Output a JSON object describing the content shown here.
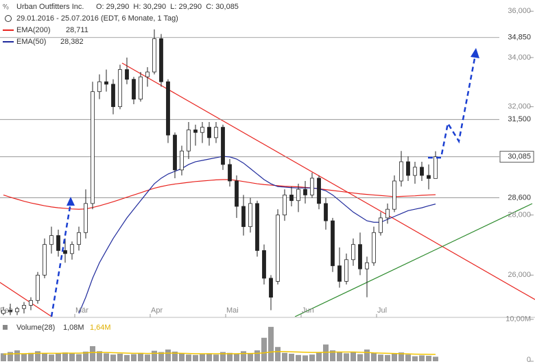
{
  "chart_data": {
    "type": "candlestick",
    "title": "Urban Outfitters Inc.",
    "quote": "O: 29,290  H: 30,290  L: 29,290  C: 30,085",
    "subtitle": "29.01.2016 - 25.07.2016 (EDT, 6 Monate, 1 Tag)",
    "categories": [
      "Feb",
      null,
      null,
      null,
      null,
      null,
      null,
      null,
      null,
      null,
      null,
      "Mär",
      null,
      null,
      null,
      null,
      null,
      null,
      null,
      null,
      null,
      null,
      "Apr",
      null,
      null,
      null,
      null,
      null,
      null,
      null,
      null,
      null,
      null,
      "Mai",
      null,
      null,
      null,
      null,
      null,
      null,
      null,
      null,
      null,
      null,
      "Jun",
      null,
      null,
      null,
      null,
      null,
      null,
      null,
      null,
      null,
      null,
      "Jul",
      null,
      null,
      null,
      null,
      null,
      null,
      null,
      null
    ],
    "open": [
      24800,
      24900,
      24850,
      24950,
      25050,
      25200,
      26000,
      27000,
      27300,
      26800,
      26700,
      27000,
      27400,
      28400,
      32600,
      33000,
      32900,
      32000,
      33500,
      33100,
      32300,
      33200,
      33400,
      34800,
      33000,
      30900,
      29600,
      30300,
      31100,
      31000,
      31200,
      30800,
      31200,
      29800,
      29200,
      28300,
      27600,
      28400,
      26800,
      25900,
      25800,
      28000,
      28700,
      28500,
      28900,
      28700,
      29300,
      28400,
      27800,
      26300,
      25800,
      26500,
      27000,
      26200,
      26400,
      27400,
      27900,
      28200,
      29200,
      29900,
      29400,
      29700,
      29400,
      29290
    ],
    "high": [
      25000,
      25100,
      25000,
      25150,
      25300,
      26100,
      27200,
      27600,
      27500,
      27200,
      27100,
      27600,
      28900,
      33000,
      33300,
      33500,
      33100,
      33700,
      34000,
      33200,
      33400,
      33600,
      35200,
      35000,
      33100,
      31000,
      30500,
      31400,
      31300,
      31400,
      31400,
      31400,
      31300,
      30000,
      29400,
      28700,
      28600,
      28500,
      27000,
      26000,
      28200,
      28900,
      29000,
      29100,
      29200,
      29500,
      29400,
      28600,
      27900,
      26900,
      26700,
      27200,
      27400,
      26600,
      27600,
      28100,
      28400,
      29400,
      30300,
      30100,
      29900,
      29900,
      29800,
      30290
    ],
    "low": [
      24750,
      24750,
      24750,
      24800,
      24900,
      25100,
      25900,
      26700,
      26600,
      26400,
      26500,
      26800,
      27200,
      28200,
      32300,
      32600,
      31700,
      31900,
      32900,
      32100,
      32200,
      32800,
      33300,
      32800,
      30600,
      29300,
      29400,
      30000,
      30500,
      30600,
      30500,
      30600,
      29600,
      29000,
      27900,
      27300,
      27400,
      26600,
      25700,
      24900,
      25700,
      27800,
      28300,
      28100,
      28400,
      28600,
      28200,
      27500,
      26100,
      25600,
      25700,
      26300,
      26000,
      25300,
      26300,
      27300,
      27700,
      28100,
      29000,
      29200,
      29100,
      29200,
      28900,
      29290
    ],
    "close": [
      24900,
      24850,
      24950,
      25050,
      25200,
      26000,
      27000,
      27300,
      26800,
      26700,
      27000,
      27400,
      28400,
      32600,
      33000,
      32900,
      32000,
      33500,
      33100,
      32300,
      33200,
      33400,
      34800,
      33000,
      30900,
      29600,
      30300,
      31100,
      31000,
      31200,
      30800,
      31200,
      29800,
      29200,
      28300,
      27600,
      28400,
      26800,
      25900,
      25300,
      28000,
      28700,
      28500,
      28900,
      28700,
      29300,
      28400,
      27800,
      26300,
      25800,
      26500,
      27000,
      26200,
      26400,
      27400,
      27900,
      28200,
      29200,
      29900,
      29400,
      29700,
      29400,
      29290,
      30085
    ],
    "series": [
      {
        "name": "EMA(200)",
        "legend_value": "28,711",
        "color": "#e8231e",
        "values": [
          28700,
          28620,
          28550,
          28480,
          28420,
          28370,
          28320,
          28280,
          28250,
          28230,
          28210,
          28200,
          28210,
          28260,
          28320,
          28390,
          28460,
          28540,
          28620,
          28700,
          28780,
          28860,
          28940,
          29000,
          29050,
          29090,
          29120,
          29150,
          29180,
          29200,
          29220,
          29240,
          29250,
          29250,
          29220,
          29180,
          29140,
          29100,
          29070,
          29050,
          29030,
          29010,
          29000,
          28990,
          28970,
          28950,
          28920,
          28890,
          28860,
          28830,
          28800,
          28770,
          28740,
          28720,
          28700,
          28680,
          28660,
          28640,
          28650,
          28660,
          28670,
          28690,
          28700,
          28711
        ]
      },
      {
        "name": "EMA(50)",
        "legend_value": "28,382",
        "color": "#1f2a9c",
        "values": [
          null,
          null,
          null,
          null,
          null,
          null,
          null,
          null,
          null,
          null,
          null,
          24800,
          25300,
          25900,
          26400,
          26800,
          27200,
          27550,
          27900,
          28200,
          28500,
          28800,
          29100,
          29300,
          29450,
          29550,
          29650,
          29800,
          29900,
          29950,
          30000,
          30050,
          30100,
          30080,
          30000,
          29850,
          29650,
          29450,
          29250,
          29100,
          29000,
          28980,
          28960,
          28950,
          28950,
          28950,
          28920,
          28850,
          28700,
          28500,
          28300,
          28100,
          27950,
          27800,
          27750,
          27750,
          27850,
          27950,
          28050,
          28150,
          28200,
          28250,
          28320,
          28382
        ]
      }
    ],
    "log_scale": true,
    "ylim": [
      24700,
      36500
    ],
    "yticks": [
      {
        "value": 26000,
        "label": "26,000"
      },
      {
        "value": 28000,
        "label": "28,000"
      },
      {
        "value": 32000,
        "label": "32,000"
      },
      {
        "value": 34000,
        "label": "34,000"
      },
      {
        "value": 36000,
        "label": "36,000"
      }
    ],
    "levels": [
      {
        "value": 34850,
        "label": "34,850"
      },
      {
        "value": 31500,
        "label": "31,500"
      },
      {
        "value": 30085,
        "label": "30,085"
      },
      {
        "value": 28600,
        "label": "28,600"
      }
    ],
    "volume": {
      "name": "Volume(28)",
      "value_label": "1,08M",
      "average_label": "1,64M",
      "values": [
        1.9,
        2.2,
        2.6,
        1.8,
        2.0,
        2.4,
        1.9,
        1.6,
        1.8,
        2.1,
        2.0,
        1.7,
        2.3,
        3.6,
        2.4,
        1.9,
        1.6,
        1.8,
        1.5,
        1.7,
        2.0,
        1.6,
        2.5,
        2.2,
        2.8,
        2.3,
        1.8,
        1.6,
        1.5,
        1.7,
        1.9,
        1.6,
        2.2,
        2.0,
        1.8,
        2.4,
        1.9,
        2.6,
        5.6,
        8.2,
        3.4,
        2.0,
        1.8,
        1.5,
        1.4,
        1.6,
        2.1,
        4.0,
        2.6,
        2.2,
        1.9,
        2.3,
        1.7,
        2.8,
        2.0,
        1.6,
        1.5,
        1.8,
        2.1,
        1.6,
        1.2,
        1.4,
        1.3,
        1.08
      ],
      "average": [
        1.7,
        1.75,
        1.8,
        1.8,
        1.85,
        1.9,
        1.9,
        1.9,
        1.9,
        1.95,
        1.95,
        1.95,
        2.0,
        2.1,
        2.1,
        2.1,
        2.05,
        2.0,
        1.95,
        1.9,
        1.9,
        1.85,
        1.9,
        1.9,
        1.95,
        1.95,
        1.9,
        1.85,
        1.8,
        1.8,
        1.8,
        1.8,
        1.8,
        1.8,
        1.8,
        1.85,
        1.85,
        1.9,
        2.0,
        2.2,
        2.3,
        2.3,
        2.25,
        2.2,
        2.15,
        2.1,
        2.1,
        2.15,
        2.2,
        2.2,
        2.2,
        2.2,
        2.15,
        2.1,
        2.0,
        1.95,
        1.9,
        1.85,
        1.8,
        1.75,
        1.7,
        1.68,
        1.66,
        1.64
      ],
      "bar_color": "#9a9a9a",
      "average_color": "#f2c500",
      "ylim": [
        0,
        10.3
      ],
      "yticks": [
        {
          "value": 10,
          "label": "10,00M"
        },
        0
      ]
    }
  }
}
